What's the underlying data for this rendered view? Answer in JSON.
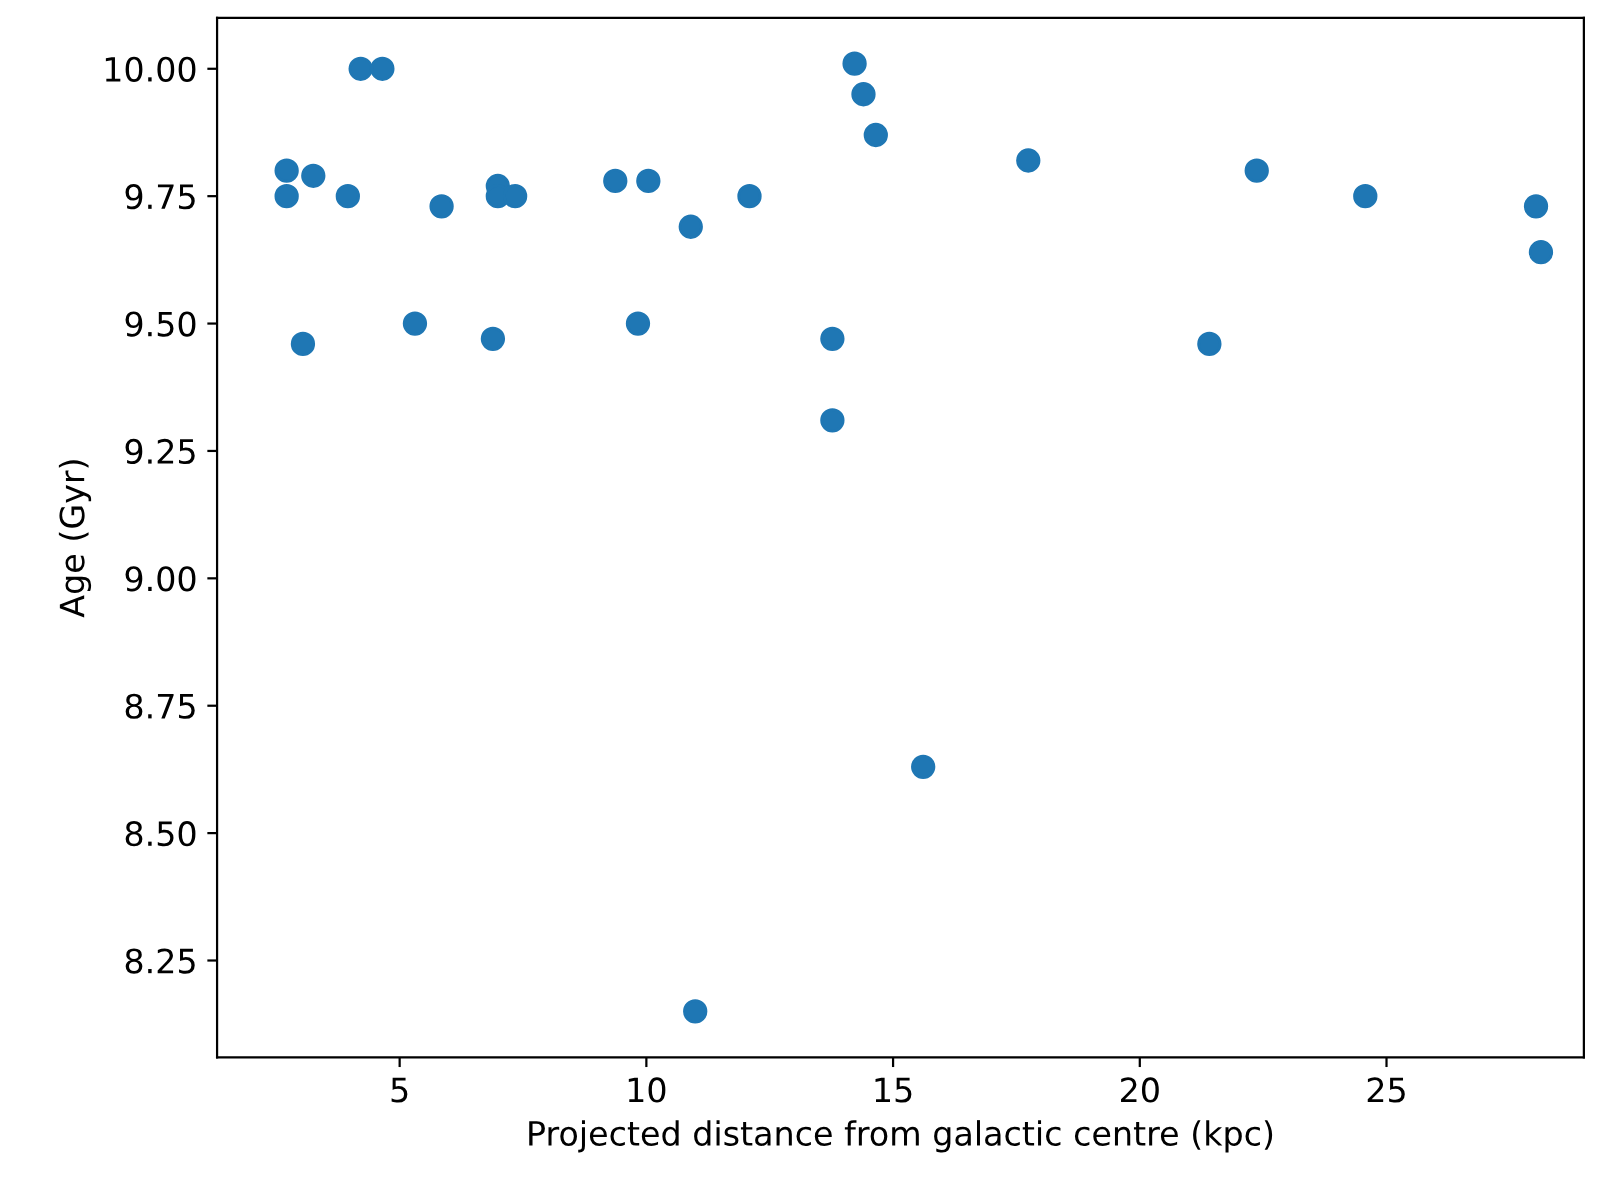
{
  "chart_data": {
    "type": "scatter",
    "xlabel": "Projected distance from galactic centre (kpc)",
    "ylabel": "Age (Gyr)",
    "series": [
      {
        "color": "#1f77b4",
        "x": [
          2.71,
          2.71,
          3.25,
          3.95,
          3.04,
          4.21,
          4.65,
          5.85,
          5.31,
          6.89,
          6.99,
          6.99,
          7.34,
          9.37,
          10.04,
          9.83,
          10.9,
          12.09,
          13.77,
          13.77,
          14.22,
          14.4,
          14.65,
          17.74,
          22.37,
          21.41,
          24.57,
          28.03,
          28.13,
          15.61,
          10.99
        ],
        "values": [
          9.8,
          9.75,
          9.79,
          9.75,
          9.46,
          10.0,
          10.0,
          9.73,
          9.5,
          9.47,
          9.77,
          9.75,
          9.75,
          9.78,
          9.78,
          9.5,
          9.69,
          9.75,
          9.47,
          9.31,
          10.01,
          9.95,
          9.87,
          9.82,
          9.8,
          9.46,
          9.75,
          9.73,
          9.64,
          8.63,
          8.15
        ]
      }
    ],
    "xlim": [
      1.3,
      29.0
    ],
    "xticks": [
      5,
      10,
      15,
      20,
      25
    ],
    "ylim": [
      8.06,
      10.1
    ],
    "yticks": [
      {
        "value": 8.25,
        "label": "8.25"
      },
      {
        "value": 8.5,
        "label": "8.50"
      },
      {
        "value": 8.75,
        "label": "8.75"
      },
      {
        "value": 9.0,
        "label": "9.00"
      },
      {
        "value": 9.25,
        "label": "9.25"
      },
      {
        "value": 9.5,
        "label": "9.50"
      },
      {
        "value": 9.75,
        "label": "9.75"
      },
      {
        "value": 10.0,
        "label": "10.00"
      }
    ],
    "grid": false,
    "legend": false,
    "marker": "circle"
  }
}
